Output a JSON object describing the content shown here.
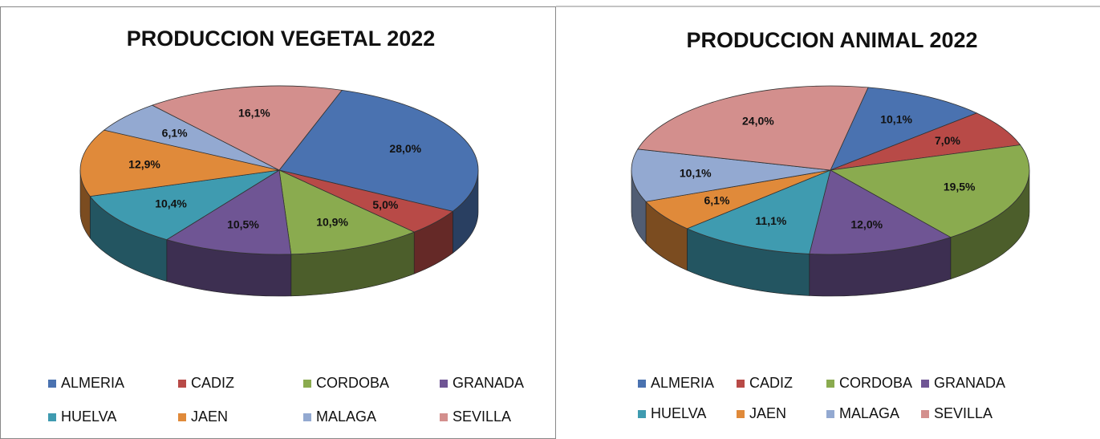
{
  "chart_data": [
    {
      "type": "pie",
      "title": "PRODUCCION VEGETAL 2022",
      "categories": [
        "ALMERIA",
        "CADIZ",
        "CORDOBA",
        "GRANADA",
        "HUELVA",
        "JAEN",
        "MALAGA",
        "SEVILLA"
      ],
      "values": [
        28.0,
        5.0,
        10.9,
        10.5,
        10.4,
        12.9,
        6.1,
        16.1
      ],
      "value_labels": [
        "28,0%",
        "5,0%",
        "10,9%",
        "10,5%",
        "10,4%",
        "12,9%",
        "6,1%",
        "16,1%"
      ],
      "colors": [
        "#4a72b0",
        "#b84a47",
        "#8aab4f",
        "#6f5594",
        "#3f9bb0",
        "#e08a3a",
        "#93a9d1",
        "#d38f8d"
      ],
      "legend": "bottom"
    },
    {
      "type": "pie",
      "title": "PRODUCCION ANIMAL 2022",
      "categories": [
        "ALMERIA",
        "CADIZ",
        "CORDOBA",
        "GRANADA",
        "HUELVA",
        "JAEN",
        "MALAGA",
        "SEVILLA"
      ],
      "values": [
        10.1,
        7.0,
        19.5,
        12.0,
        11.1,
        6.1,
        10.1,
        24.0
      ],
      "value_labels": [
        "10,1%",
        "7,0%",
        "19,5%",
        "12,0%",
        "11,1%",
        "6,1%",
        "10,1%",
        "24,0%"
      ],
      "colors": [
        "#4a72b0",
        "#b84a47",
        "#8aab4f",
        "#6f5594",
        "#3f9bb0",
        "#e08a3a",
        "#93a9d1",
        "#d38f8d"
      ],
      "legend": "bottom"
    }
  ]
}
